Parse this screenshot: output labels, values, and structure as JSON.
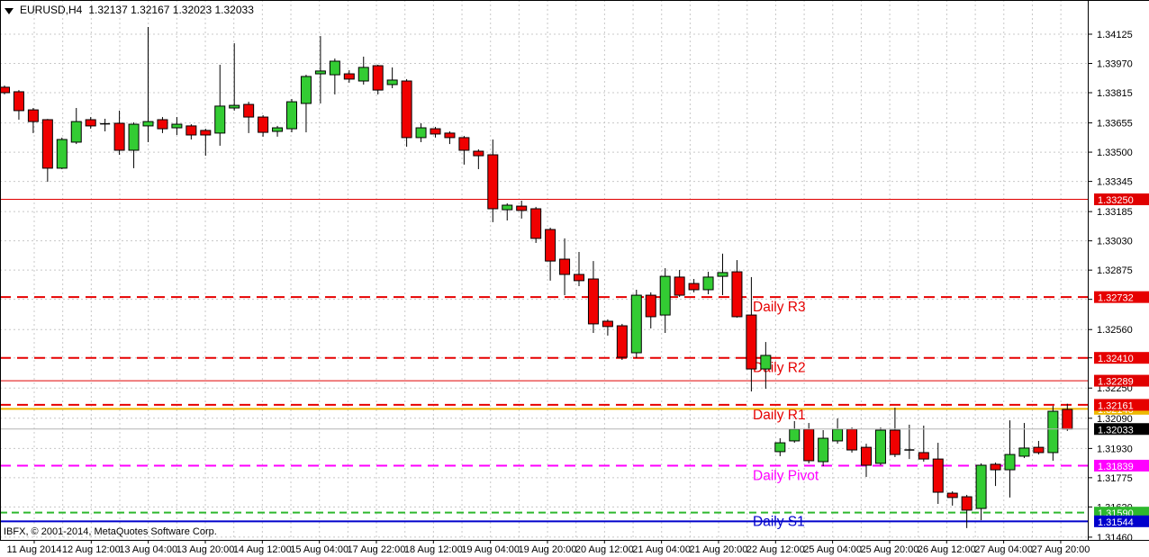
{
  "title": {
    "symbol": "EURUSD,H4",
    "ohlc_text": "1.32137 1.32167 1.32023 1.32033"
  },
  "copyright": "IBFX, © 2001-2014, MetaQuotes Software Corp.",
  "colors": {
    "background": "#ffffff",
    "bull_candle": "#33cc33",
    "bear_candle": "#f00000",
    "candle_outline": "#000000",
    "grid": "#c8c8c8",
    "bid_line": "#b4b4b4",
    "axis_line": "#000000",
    "pivot_red": "#e60000",
    "pivot_magenta": "#ff00ff",
    "pivot_gold": "#edb800",
    "pivot_green": "#2eb82e",
    "pivot_blue": "#0000cc"
  },
  "y_axis": {
    "ticks": [
      "1.34125",
      "1.33970",
      "1.33815",
      "1.33655",
      "1.33500",
      "1.33345",
      "1.33185",
      "1.33030",
      "1.32875",
      "1.32720",
      "1.32560",
      "1.32410",
      "1.32250",
      "1.32090",
      "1.31930",
      "1.31775",
      "1.31620",
      "1.31460"
    ]
  },
  "x_axis": {
    "labels": [
      "11 Aug 2014",
      "12 Aug 12:00",
      "13 Aug 04:00",
      "13 Aug 20:00",
      "14 Aug 12:00",
      "15 Aug 04:00",
      "17 Aug 22:00",
      "18 Aug 12:00",
      "19 Aug 04:00",
      "19 Aug 20:00",
      "20 Aug 12:00",
      "21 Aug 04:00",
      "21 Aug 20:00",
      "22 Aug 12:00",
      "25 Aug 04:00",
      "25 Aug 20:00",
      "26 Aug 12:00",
      "27 Aug 04:00",
      "27 Aug 20:00"
    ]
  },
  "current_price": {
    "label": "1.32033",
    "value": 1.32033,
    "bg": "#000000",
    "fg": "#ffffff"
  },
  "levels": [
    {
      "name": "resistance-13325",
      "label": "1.33250",
      "value": 1.3325,
      "color": "#e00000",
      "style": "solid",
      "width": 1,
      "text": null
    },
    {
      "name": "daily-r3",
      "label": "1.32732",
      "value": 1.32732,
      "color": "#e60000",
      "style": "dashed",
      "width": 2,
      "text": "Daily R3"
    },
    {
      "name": "daily-r2",
      "label": "1.32410",
      "value": 1.3241,
      "color": "#e60000",
      "style": "dashed",
      "width": 2,
      "text": "Daily R2"
    },
    {
      "name": "resistance-13229",
      "label": "1.32289",
      "value": 1.32289,
      "color": "#e00000",
      "style": "solid",
      "width": 1,
      "text": null
    },
    {
      "name": "gold-line",
      "label": "1.32140",
      "value": 1.3214,
      "color": "#edb800",
      "style": "solid",
      "width": 2,
      "text": null
    },
    {
      "name": "daily-r1",
      "label": "1.32161",
      "value": 1.32161,
      "color": "#e60000",
      "style": "dashed",
      "width": 2,
      "text": "Daily R1"
    },
    {
      "name": "daily-pivot",
      "label": "1.31839",
      "value": 1.31839,
      "color": "#ff00ff",
      "style": "dashed",
      "width": 2,
      "text": "Daily Pivot"
    },
    {
      "name": "green-line",
      "label": "1.31590",
      "value": 1.3159,
      "color": "#2eb82e",
      "style": "dashed",
      "width": 2,
      "text": null
    },
    {
      "name": "daily-s1",
      "label": "1.31544",
      "value": 1.31544,
      "color": "#0000cc",
      "style": "solid",
      "width": 2,
      "text": "Daily S1"
    }
  ],
  "chart_data": {
    "type": "candlestick",
    "symbol": "EURUSD",
    "timeframe": "H4",
    "title": "EURUSD,H4 1.32137 1.32167 1.32023 1.32033",
    "x_range_labels": [
      "11 Aug 2014",
      "27 Aug 20:00"
    ],
    "price_axis_range": [
      1.3146,
      1.34125
    ],
    "last_bar_ohlc": [
      1.32137,
      1.32167,
      1.32023,
      1.32033
    ],
    "candles_ohlc": [
      [
        1.33844,
        1.33853,
        1.33806,
        1.33815
      ],
      [
        1.3382,
        1.33829,
        1.33672,
        1.3372
      ],
      [
        1.33724,
        1.33734,
        1.33601,
        1.33662
      ],
      [
        1.33672,
        1.33676,
        1.33343,
        1.33415
      ],
      [
        1.33415,
        1.33577,
        1.3341,
        1.33567
      ],
      [
        1.33553,
        1.33734,
        1.33543,
        1.33662
      ],
      [
        1.33672,
        1.33686,
        1.33624,
        1.33639
      ],
      [
        1.3365,
        1.33677,
        1.3361,
        1.33648
      ],
      [
        1.33653,
        1.3372,
        1.33486,
        1.3351
      ],
      [
        1.3351,
        1.33658,
        1.33415,
        1.33648
      ],
      [
        1.33639,
        1.34163,
        1.33553,
        1.33662
      ],
      [
        1.33672,
        1.33686,
        1.33601,
        1.33624
      ],
      [
        1.33629,
        1.33686,
        1.33591,
        1.33648
      ],
      [
        1.33639,
        1.33648,
        1.33567,
        1.33591
      ],
      [
        1.33615,
        1.33624,
        1.33481,
        1.33591
      ],
      [
        1.33601,
        1.33963,
        1.33534,
        1.33744
      ],
      [
        1.33734,
        1.34077,
        1.3372,
        1.33748
      ],
      [
        1.33753,
        1.33767,
        1.33601,
        1.33686
      ],
      [
        1.33686,
        1.33696,
        1.33582,
        1.33605
      ],
      [
        1.3361,
        1.33639,
        1.33582,
        1.33629
      ],
      [
        1.33624,
        1.33782,
        1.33605,
        1.33767
      ],
      [
        1.33758,
        1.3391,
        1.33605,
        1.33901
      ],
      [
        1.33915,
        1.34115,
        1.33758,
        1.3393
      ],
      [
        1.3391,
        1.33996,
        1.33806,
        1.33982
      ],
      [
        1.33915,
        1.33934,
        1.33868,
        1.33887
      ],
      [
        1.33877,
        1.34006,
        1.33858,
        1.33949
      ],
      [
        1.33958,
        1.33963,
        1.33806,
        1.33829
      ],
      [
        1.33858,
        1.33949,
        1.33839,
        1.33882
      ],
      [
        1.33877,
        1.33887,
        1.33529,
        1.33577
      ],
      [
        1.33577,
        1.33653,
        1.33553,
        1.33629
      ],
      [
        1.33624,
        1.33634,
        1.33577,
        1.33596
      ],
      [
        1.33601,
        1.3361,
        1.33543,
        1.33577
      ],
      [
        1.33577,
        1.33586,
        1.33434,
        1.3351
      ],
      [
        1.33505,
        1.33515,
        1.3341,
        1.33481
      ],
      [
        1.33486,
        1.33567,
        1.33129,
        1.332
      ],
      [
        1.33195,
        1.33229,
        1.33138,
        1.33219
      ],
      [
        1.33214,
        1.33243,
        1.33148,
        1.33191
      ],
      [
        1.332,
        1.3321,
        1.33019,
        1.33043
      ],
      [
        1.3309,
        1.331,
        1.32819,
        1.32923
      ],
      [
        1.32933,
        1.33043,
        1.32742,
        1.32852
      ],
      [
        1.32852,
        1.32971,
        1.3279,
        1.32819
      ],
      [
        1.32828,
        1.32923,
        1.32542,
        1.3259
      ],
      [
        1.32604,
        1.32614,
        1.32528,
        1.32576
      ],
      [
        1.3258,
        1.3259,
        1.32399,
        1.32413
      ],
      [
        1.32437,
        1.32771,
        1.32409,
        1.32742
      ],
      [
        1.32742,
        1.32757,
        1.32566,
        1.32628
      ],
      [
        1.32637,
        1.32885,
        1.32542,
        1.32842
      ],
      [
        1.32838,
        1.32876,
        1.32733,
        1.32742
      ],
      [
        1.32804,
        1.32828,
        1.32757,
        1.32771
      ],
      [
        1.32771,
        1.32866,
        1.32747,
        1.32838
      ],
      [
        1.32842,
        1.32962,
        1.32742,
        1.32862
      ],
      [
        1.32866,
        1.32928,
        1.32623,
        1.32628
      ],
      [
        1.32637,
        1.32838,
        1.32232,
        1.32351
      ],
      [
        1.32351,
        1.32494,
        1.32246,
        1.32423
      ],
      [
        1.31913,
        1.31984,
        1.31889,
        1.3196
      ],
      [
        1.3197,
        1.32075,
        1.3196,
        1.32032
      ],
      [
        1.32032,
        1.32065,
        1.31851,
        1.31865
      ],
      [
        1.3186,
        1.32027,
        1.31836,
        1.31984
      ],
      [
        1.3197,
        1.32089,
        1.31955,
        1.32032
      ],
      [
        1.32032,
        1.32041,
        1.31908,
        1.31922
      ],
      [
        1.31936,
        1.31955,
        1.31779,
        1.31841
      ],
      [
        1.31851,
        1.32041,
        1.31841,
        1.32027
      ],
      [
        1.32027,
        1.32146,
        1.31884,
        1.31898
      ],
      [
        1.31922,
        1.32056,
        1.31874,
        1.31917
      ],
      [
        1.31908,
        1.32051,
        1.3186,
        1.31874
      ],
      [
        1.31874,
        1.3196,
        1.31636,
        1.31698
      ],
      [
        1.31693,
        1.31703,
        1.31627,
        1.3167
      ],
      [
        1.31674,
        1.31684,
        1.31508,
        1.31603
      ],
      [
        1.31612,
        1.31851,
        1.3155,
        1.31841
      ],
      [
        1.31846,
        1.31855,
        1.31731,
        1.31817
      ],
      [
        1.31817,
        1.32079,
        1.3167,
        1.31898
      ],
      [
        1.31889,
        1.32065,
        1.31879,
        1.31932
      ],
      [
        1.31936,
        1.3197,
        1.31898,
        1.31908
      ],
      [
        1.31908,
        1.32156,
        1.31865,
        1.32127
      ],
      [
        1.32137,
        1.32167,
        1.32023,
        1.32033
      ]
    ]
  }
}
